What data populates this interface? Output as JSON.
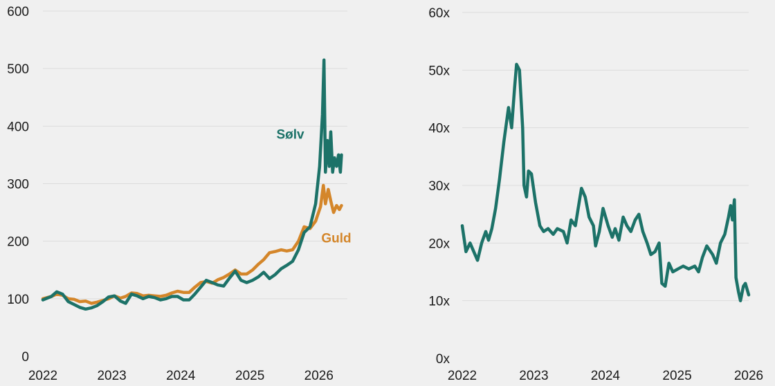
{
  "chart_data": [
    {
      "type": "line",
      "title": "",
      "xlabel": "",
      "ylabel": "",
      "ylim": [
        0,
        600
      ],
      "xlim": [
        "2022-01-01",
        "2026-06-01"
      ],
      "grid": "horizontal",
      "x_ticks": [
        "2022",
        "2023",
        "2024",
        "2025",
        "2026"
      ],
      "y_ticks": [
        "0",
        "100",
        "200",
        "300",
        "400",
        "500",
        "600"
      ],
      "y_tick_values": [
        0,
        100,
        200,
        300,
        400,
        500,
        600
      ],
      "series": [
        {
          "name": "Guld",
          "color": "#d4862a",
          "points": [
            [
              "2022-01-01",
              100
            ],
            [
              "2022-02-15",
              104
            ],
            [
              "2022-03-15",
              108
            ],
            [
              "2022-04-15",
              106
            ],
            [
              "2022-05-15",
              100
            ],
            [
              "2022-06-15",
              99
            ],
            [
              "2022-07-15",
              95
            ],
            [
              "2022-08-15",
              96
            ],
            [
              "2022-09-15",
              92
            ],
            [
              "2022-10-15",
              94
            ],
            [
              "2022-11-15",
              97
            ],
            [
              "2022-12-15",
              100
            ],
            [
              "2023-01-15",
              105
            ],
            [
              "2023-02-15",
              101
            ],
            [
              "2023-03-15",
              104
            ],
            [
              "2023-04-15",
              110
            ],
            [
              "2023-05-15",
              109
            ],
            [
              "2023-06-15",
              105
            ],
            [
              "2023-07-15",
              106
            ],
            [
              "2023-08-15",
              105
            ],
            [
              "2023-09-15",
              104
            ],
            [
              "2023-10-15",
              106
            ],
            [
              "2023-11-15",
              110
            ],
            [
              "2023-12-15",
              113
            ],
            [
              "2024-01-15",
              111
            ],
            [
              "2024-02-15",
              111
            ],
            [
              "2024-03-15",
              120
            ],
            [
              "2024-04-15",
              128
            ],
            [
              "2024-05-15",
              130
            ],
            [
              "2024-06-15",
              127
            ],
            [
              "2024-07-15",
              133
            ],
            [
              "2024-08-15",
              137
            ],
            [
              "2024-09-15",
              143
            ],
            [
              "2024-10-15",
              150
            ],
            [
              "2024-11-15",
              143
            ],
            [
              "2024-12-15",
              143
            ],
            [
              "2025-01-15",
              150
            ],
            [
              "2025-02-15",
              160
            ],
            [
              "2025-03-15",
              168
            ],
            [
              "2025-04-15",
              180
            ],
            [
              "2025-05-15",
              182
            ],
            [
              "2025-06-15",
              185
            ],
            [
              "2025-07-15",
              183
            ],
            [
              "2025-08-15",
              185
            ],
            [
              "2025-09-15",
              200
            ],
            [
              "2025-10-15",
              225
            ],
            [
              "2025-11-15",
              222
            ],
            [
              "2025-12-15",
              235
            ],
            [
              "2026-01-10",
              260
            ],
            [
              "2026-01-25",
              297
            ],
            [
              "2026-02-05",
              265
            ],
            [
              "2026-02-20",
              290
            ],
            [
              "2026-03-05",
              270
            ],
            [
              "2026-03-20",
              250
            ],
            [
              "2026-04-05",
              262
            ],
            [
              "2026-04-20",
              255
            ],
            [
              "2026-05-01",
              262
            ]
          ]
        },
        {
          "name": "Sølv",
          "color": "#1c7268",
          "points": [
            [
              "2022-01-01",
              98
            ],
            [
              "2022-02-15",
              104
            ],
            [
              "2022-03-15",
              112
            ],
            [
              "2022-04-15",
              108
            ],
            [
              "2022-05-15",
              95
            ],
            [
              "2022-06-15",
              90
            ],
            [
              "2022-07-15",
              85
            ],
            [
              "2022-08-15",
              82
            ],
            [
              "2022-09-15",
              84
            ],
            [
              "2022-10-15",
              88
            ],
            [
              "2022-11-15",
              95
            ],
            [
              "2022-12-15",
              103
            ],
            [
              "2023-01-15",
              105
            ],
            [
              "2023-02-15",
              96
            ],
            [
              "2023-03-15",
              92
            ],
            [
              "2023-04-15",
              108
            ],
            [
              "2023-05-15",
              105
            ],
            [
              "2023-06-15",
              100
            ],
            [
              "2023-07-15",
              104
            ],
            [
              "2023-08-15",
              102
            ],
            [
              "2023-09-15",
              98
            ],
            [
              "2023-10-15",
              100
            ],
            [
              "2023-11-15",
              104
            ],
            [
              "2023-12-15",
              104
            ],
            [
              "2024-01-15",
              98
            ],
            [
              "2024-02-15",
              98
            ],
            [
              "2024-03-15",
              108
            ],
            [
              "2024-04-15",
              120
            ],
            [
              "2024-05-15",
              132
            ],
            [
              "2024-06-15",
              128
            ],
            [
              "2024-07-15",
              124
            ],
            [
              "2024-08-15",
              122
            ],
            [
              "2024-09-15",
              136
            ],
            [
              "2024-10-15",
              148
            ],
            [
              "2024-11-15",
              132
            ],
            [
              "2024-12-15",
              128
            ],
            [
              "2025-01-15",
              132
            ],
            [
              "2025-02-15",
              138
            ],
            [
              "2025-03-15",
              146
            ],
            [
              "2025-04-15",
              135
            ],
            [
              "2025-05-15",
              142
            ],
            [
              "2025-06-15",
              152
            ],
            [
              "2025-07-15",
              158
            ],
            [
              "2025-08-15",
              165
            ],
            [
              "2025-09-15",
              185
            ],
            [
              "2025-10-15",
              215
            ],
            [
              "2025-11-15",
              225
            ],
            [
              "2025-12-15",
              265
            ],
            [
              "2026-01-05",
              330
            ],
            [
              "2026-01-20",
              420
            ],
            [
              "2026-01-28",
              515
            ],
            [
              "2026-02-05",
              320
            ],
            [
              "2026-02-15",
              375
            ],
            [
              "2026-02-25",
              330
            ],
            [
              "2026-03-05",
              390
            ],
            [
              "2026-03-15",
              320
            ],
            [
              "2026-03-25",
              345
            ],
            [
              "2026-04-05",
              330
            ],
            [
              "2026-04-15",
              350
            ],
            [
              "2026-04-25",
              320
            ],
            [
              "2026-05-01",
              350
            ]
          ]
        }
      ]
    },
    {
      "type": "line",
      "title": "",
      "xlabel": "",
      "ylabel": "",
      "ylim": [
        0,
        60
      ],
      "xlim": [
        "2022-01-01",
        "2026-01-01"
      ],
      "grid": "horizontal",
      "x_ticks": [
        "2022",
        "2023",
        "2024",
        "2025",
        "2026"
      ],
      "y_ticks": [
        "0x",
        "10x",
        "20x",
        "30x",
        "40x",
        "50x",
        "60x"
      ],
      "y_tick_values": [
        0,
        10,
        20,
        30,
        40,
        50,
        60
      ],
      "series": [
        {
          "color": "#1c7268",
          "points": [
            [
              "2022-01-01",
              23
            ],
            [
              "2022-01-20",
              18.5
            ],
            [
              "2022-02-10",
              20
            ],
            [
              "2022-03-01",
              18.5
            ],
            [
              "2022-03-20",
              17
            ],
            [
              "2022-04-10",
              20
            ],
            [
              "2022-05-01",
              22
            ],
            [
              "2022-05-15",
              20.5
            ],
            [
              "2022-06-01",
              22.5
            ],
            [
              "2022-06-20",
              26
            ],
            [
              "2022-07-10",
              31
            ],
            [
              "2022-08-01",
              37.5
            ],
            [
              "2022-08-25",
              43.5
            ],
            [
              "2022-09-10",
              40
            ],
            [
              "2022-09-25",
              47
            ],
            [
              "2022-10-05",
              51
            ],
            [
              "2022-10-20",
              50
            ],
            [
              "2022-11-05",
              40
            ],
            [
              "2022-11-12",
              30
            ],
            [
              "2022-11-25",
              28
            ],
            [
              "2022-12-05",
              32.5
            ],
            [
              "2022-12-20",
              32
            ],
            [
              "2023-01-10",
              27
            ],
            [
              "2023-02-01",
              23
            ],
            [
              "2023-02-20",
              22
            ],
            [
              "2023-03-15",
              22.5
            ],
            [
              "2023-04-10",
              21.5
            ],
            [
              "2023-05-01",
              22.5
            ],
            [
              "2023-06-01",
              22
            ],
            [
              "2023-06-20",
              20
            ],
            [
              "2023-07-10",
              24
            ],
            [
              "2023-08-01",
              23
            ],
            [
              "2023-08-20",
              27
            ],
            [
              "2023-09-01",
              29.5
            ],
            [
              "2023-09-20",
              28
            ],
            [
              "2023-10-10",
              24.5
            ],
            [
              "2023-11-01",
              23
            ],
            [
              "2023-11-12",
              19.5
            ],
            [
              "2023-12-01",
              22
            ],
            [
              "2023-12-20",
              26
            ],
            [
              "2024-01-15",
              23
            ],
            [
              "2024-02-05",
              21
            ],
            [
              "2024-02-20",
              22.5
            ],
            [
              "2024-03-10",
              20.5
            ],
            [
              "2024-04-01",
              24.5
            ],
            [
              "2024-04-20",
              23
            ],
            [
              "2024-05-10",
              22
            ],
            [
              "2024-06-01",
              24
            ],
            [
              "2024-06-20",
              25
            ],
            [
              "2024-07-10",
              22
            ],
            [
              "2024-08-01",
              20
            ],
            [
              "2024-08-20",
              18
            ],
            [
              "2024-09-10",
              18.5
            ],
            [
              "2024-10-01",
              20
            ],
            [
              "2024-10-15",
              13
            ],
            [
              "2024-11-01",
              12.5
            ],
            [
              "2024-11-20",
              16.5
            ],
            [
              "2024-12-10",
              15
            ],
            [
              "2025-01-05",
              15.5
            ],
            [
              "2025-02-01",
              16
            ],
            [
              "2025-03-01",
              15.5
            ],
            [
              "2025-04-01",
              16
            ],
            [
              "2025-04-20",
              15
            ],
            [
              "2025-05-10",
              17.5
            ],
            [
              "2025-06-01",
              19.5
            ],
            [
              "2025-07-01",
              18
            ],
            [
              "2025-07-20",
              16.5
            ],
            [
              "2025-08-10",
              20
            ],
            [
              "2025-09-01",
              21.5
            ],
            [
              "2025-09-20",
              24.5
            ],
            [
              "2025-10-01",
              26.5
            ],
            [
              "2025-10-10",
              24
            ],
            [
              "2025-10-20",
              27.5
            ],
            [
              "2025-10-28",
              14
            ],
            [
              "2025-11-10",
              11.5
            ],
            [
              "2025-11-20",
              10
            ],
            [
              "2025-12-05",
              12.5
            ],
            [
              "2025-12-15",
              13
            ],
            [
              "2026-01-01",
              11
            ]
          ]
        }
      ]
    }
  ]
}
